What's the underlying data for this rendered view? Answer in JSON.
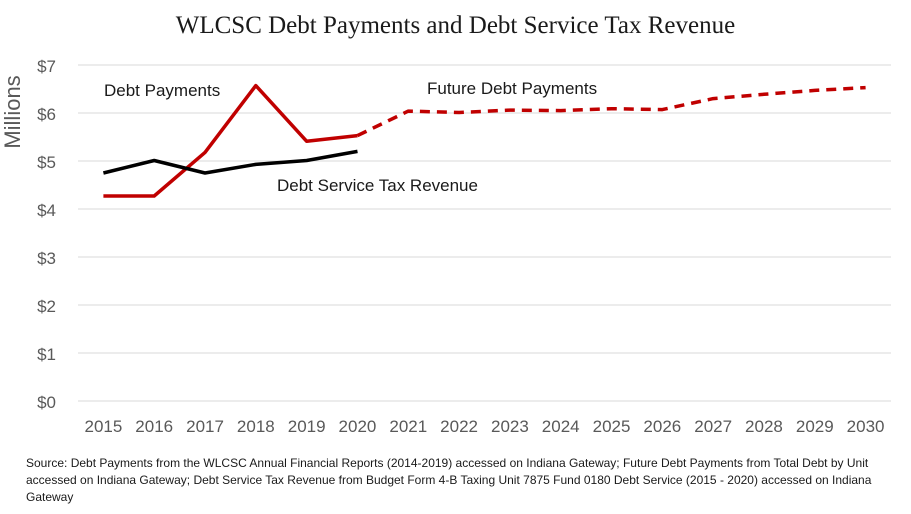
{
  "chart_data": {
    "type": "line",
    "title": "WLCSC Debt Payments and Debt Service Tax Revenue",
    "xlabel": "",
    "ylabel": "Millions",
    "x": [
      "2015",
      "2016",
      "2017",
      "2018",
      "2019",
      "2020",
      "2021",
      "2022",
      "2023",
      "2024",
      "2025",
      "2026",
      "2027",
      "2028",
      "2029",
      "2030"
    ],
    "ylim": [
      0,
      7
    ],
    "yticks": [
      0,
      1,
      2,
      3,
      4,
      5,
      6,
      7
    ],
    "ytick_labels": [
      "$0",
      "$1",
      "$2",
      "$3",
      "$4",
      "$5",
      "$6",
      "$7"
    ],
    "grid": true,
    "series": [
      {
        "name": "Debt Payments",
        "color": "#c00000",
        "style": "solid",
        "x": [
          "2015",
          "2016",
          "2017",
          "2018",
          "2019",
          "2020"
        ],
        "values": [
          4.27,
          4.27,
          5.18,
          6.57,
          5.41,
          5.53
        ]
      },
      {
        "name": "Future Debt Payments",
        "color": "#c00000",
        "style": "dashed",
        "x": [
          "2020",
          "2021",
          "2022",
          "2023",
          "2024",
          "2025",
          "2026",
          "2027",
          "2028",
          "2029",
          "2030"
        ],
        "values": [
          5.53,
          6.04,
          6.01,
          6.06,
          6.05,
          6.09,
          6.07,
          6.3,
          6.39,
          6.47,
          6.53
        ]
      },
      {
        "name": "Debt Service Tax Revenue",
        "color": "#000000",
        "style": "solid",
        "x": [
          "2015",
          "2016",
          "2017",
          "2018",
          "2019",
          "2020"
        ],
        "values": [
          4.75,
          5.01,
          4.75,
          4.93,
          5.01,
          5.2
        ]
      }
    ],
    "annotations": [
      "Debt Payments",
      "Future Debt Payments",
      "Debt Service Tax Revenue"
    ]
  },
  "source_note": "Source: Debt Payments from the WLCSC Annual Financial Reports (2014-2019) accessed on Indiana Gateway; Future Debt Payments from Total Debt by Unit accessed on Indiana Gateway; Debt Service Tax Revenue from Budget Form 4-B Taxing Unit 7875  Fund 0180  Debt Service (2015 - 2020) accessed on Indiana Gateway"
}
